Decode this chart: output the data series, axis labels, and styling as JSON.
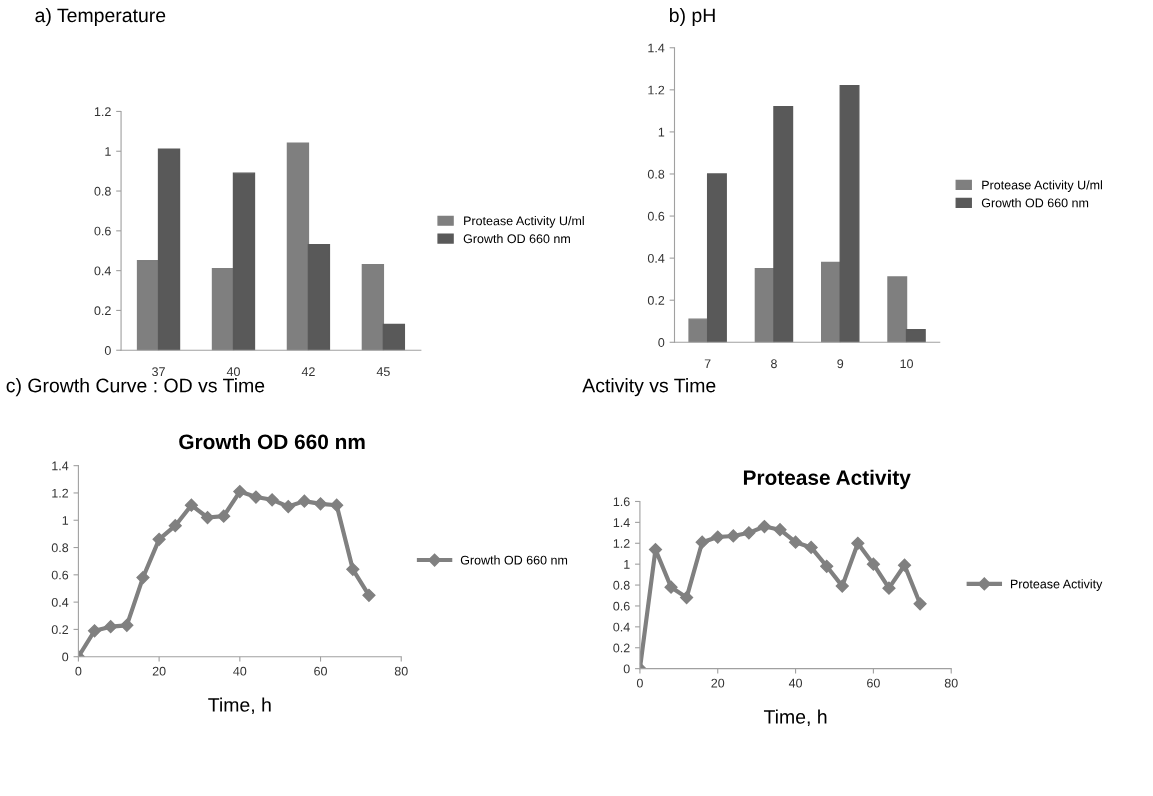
{
  "chart_data": [
    {
      "type": "bar",
      "title": "a) Temperature",
      "categories": [
        "37",
        "40",
        "42",
        "45"
      ],
      "series": [
        {
          "name": "Protease Activity U/ml",
          "color": "#7f7f7f",
          "values": [
            0.45,
            0.41,
            1.04,
            0.43
          ]
        },
        {
          "name": "Growth OD 660 nm",
          "color": "#595959",
          "values": [
            1.01,
            0.89,
            0.53,
            0.13
          ]
        }
      ],
      "ylim": [
        0,
        1.2
      ],
      "yticks": [
        0,
        0.2,
        0.4,
        0.6,
        0.8,
        1,
        1.2
      ],
      "grid": false,
      "legend": "right"
    },
    {
      "type": "bar",
      "title": "b) pH",
      "categories": [
        "7",
        "8",
        "9",
        "10"
      ],
      "series": [
        {
          "name": "Protease Activity U/ml",
          "color": "#7f7f7f",
          "values": [
            0.11,
            0.35,
            0.38,
            0.31
          ]
        },
        {
          "name": "Growth OD 660 nm",
          "color": "#595959",
          "values": [
            0.8,
            1.12,
            1.22,
            0.06
          ]
        }
      ],
      "ylim": [
        0,
        1.4
      ],
      "yticks": [
        0,
        0.2,
        0.4,
        0.6,
        0.8,
        1,
        1.2,
        1.4
      ],
      "grid": false,
      "legend": "right"
    },
    {
      "type": "line",
      "title": "c) Growth Curve : OD vs Time",
      "subtitle": "Growth OD 660 nm",
      "xlabel": "Time, h",
      "x": [
        0,
        4,
        8,
        12,
        16,
        20,
        24,
        28,
        32,
        36,
        40,
        44,
        48,
        52,
        56,
        60,
        64,
        68,
        72
      ],
      "series": [
        {
          "name": "Growth OD 660 nm",
          "color": "#808080",
          "values": [
            0,
            0.19,
            0.22,
            0.23,
            0.58,
            0.86,
            0.96,
            1.11,
            1.02,
            1.03,
            1.21,
            1.17,
            1.15,
            1.1,
            1.14,
            1.12,
            1.11,
            0.64,
            0.45
          ]
        }
      ],
      "xlim": [
        0,
        80
      ],
      "xticks": [
        0,
        20,
        40,
        60,
        80
      ],
      "ylim": [
        0,
        1.4
      ],
      "yticks": [
        0,
        0.2,
        0.4,
        0.6,
        0.8,
        1,
        1.2,
        1.4
      ],
      "grid": false,
      "legend": "right",
      "marker": "diamond",
      "line_style": "solid"
    },
    {
      "type": "line",
      "title": "Activity vs Time",
      "subtitle": "Protease Activity",
      "xlabel": "Time, h",
      "x": [
        0,
        4,
        8,
        12,
        16,
        20,
        24,
        28,
        32,
        36,
        40,
        44,
        48,
        52,
        56,
        60,
        64,
        68,
        72
      ],
      "series": [
        {
          "name": "Protease Activity",
          "color": "#808080",
          "values": [
            0,
            1.14,
            0.78,
            0.68,
            1.21,
            1.26,
            1.27,
            1.3,
            1.36,
            1.33,
            1.21,
            1.16,
            0.98,
            0.79,
            1.2,
            1.0,
            0.77,
            0.99,
            0.62
          ]
        }
      ],
      "xlim": [
        0,
        80
      ],
      "xticks": [
        0,
        20,
        40,
        60,
        80
      ],
      "ylim": [
        0,
        1.6
      ],
      "yticks": [
        0,
        0.2,
        0.4,
        0.6,
        0.8,
        1,
        1.2,
        1.4,
        1.6
      ],
      "grid": false,
      "legend": "right",
      "marker": "diamond",
      "line_style": "solid"
    }
  ]
}
